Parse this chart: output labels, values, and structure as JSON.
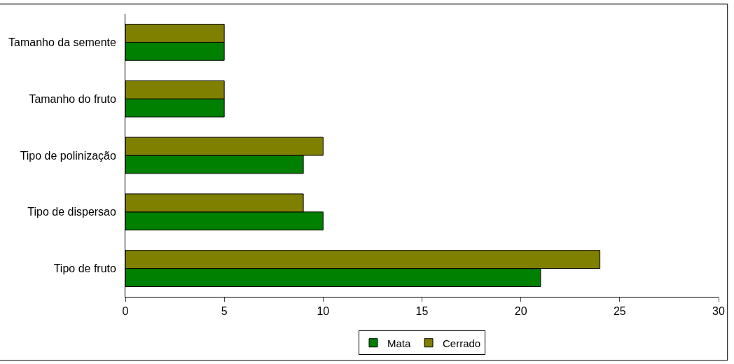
{
  "chart_data": {
    "type": "bar",
    "orientation": "horizontal",
    "categories": [
      "Tamanho da semente",
      "Tamanho do fruto",
      "Tipo de polinização",
      "Tipo de dispersao",
      "Tipo de fruto"
    ],
    "series": [
      {
        "name": "Mata",
        "color": "#008000",
        "values": [
          5,
          5,
          9,
          10,
          21
        ]
      },
      {
        "name": "Cerrado",
        "color": "#808000",
        "values": [
          5,
          5,
          10,
          9,
          24
        ]
      }
    ],
    "xlim": [
      0,
      30
    ],
    "xticks": [
      0,
      5,
      10,
      15,
      20,
      25,
      30
    ],
    "grid": false,
    "legend": "bottom"
  }
}
